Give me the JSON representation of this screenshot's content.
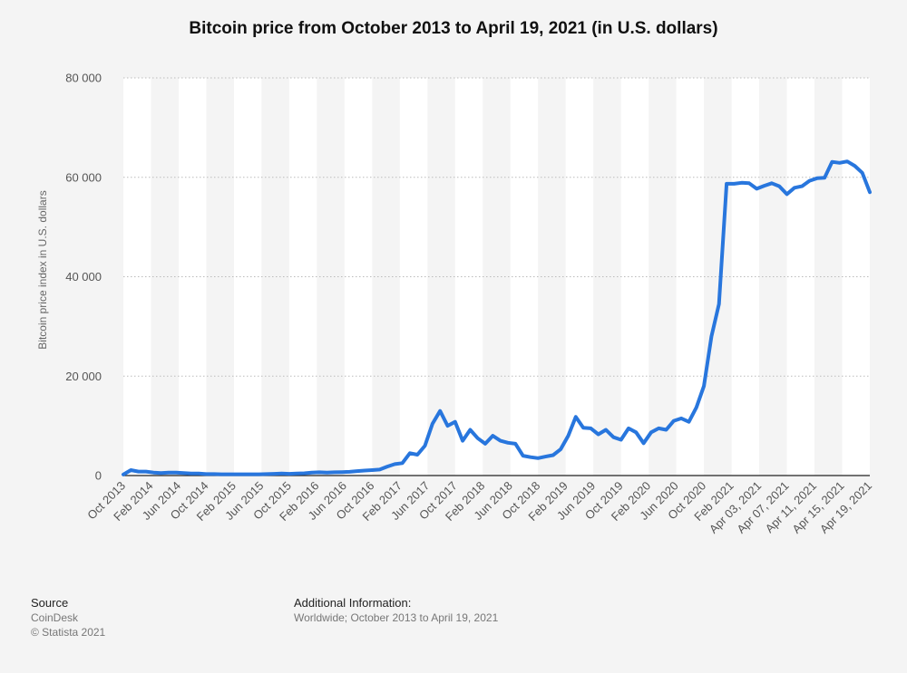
{
  "title": "Bitcoin price from October 2013 to April 19, 2021 (in U.S. dollars)",
  "source": {
    "heading": "Source",
    "name": "CoinDesk",
    "copyright": "© Statista 2021"
  },
  "additional": {
    "heading": "Additional Information:",
    "text": "Worldwide; October 2013 to April 19, 2021"
  },
  "chart_data": {
    "type": "line",
    "title": "Bitcoin price from October 2013 to April 19, 2021 (in U.S. dollars)",
    "ylabel": "Bitcoin price index in U.S. dollars",
    "xlabel": "",
    "ylim": [
      0,
      80000
    ],
    "yticks": [
      0,
      20000,
      40000,
      60000,
      80000
    ],
    "ytick_labels": [
      "0",
      "20 000",
      "40 000",
      "60 000",
      "80 000"
    ],
    "grid": true,
    "line_color": "#2876dd",
    "xtick_labels": [
      "Oct 2013",
      "Feb 2014",
      "Jun 2014",
      "Oct 2014",
      "Feb 2015",
      "Jun 2015",
      "Oct 2015",
      "Feb 2016",
      "Jun 2016",
      "Oct 2016",
      "Feb 2017",
      "Jun 2017",
      "Oct 2017",
      "Feb 2018",
      "Jun 2018",
      "Oct 2018",
      "Feb 2019",
      "Jun 2019",
      "Oct 2019",
      "Feb 2020",
      "Jun 2020",
      "Oct 2020",
      "Feb 2021",
      "Apr 03, 2021",
      "Apr 07, 2021",
      "Apr 11, 2021",
      "Apr 15, 2021",
      "Apr 19, 2021"
    ],
    "series": [
      {
        "values": [
          200,
          1100,
          800,
          800,
          600,
          500,
          600,
          600,
          500,
          400,
          400,
          300,
          300,
          250,
          250,
          250,
          250,
          250,
          250,
          300,
          350,
          400,
          350,
          400,
          450,
          600,
          650,
          600,
          650,
          700,
          750,
          900,
          1000,
          1100,
          1200,
          1800,
          2300,
          2500,
          4500,
          4200,
          6000,
          10400,
          13000,
          10000,
          10800,
          7000,
          9200,
          7500,
          6400,
          8000,
          7000,
          6600,
          6400,
          4000,
          3700,
          3500,
          3800,
          4100,
          5300,
          8000,
          11800,
          9600,
          9500,
          8300,
          9200,
          7700,
          7200,
          9500,
          8700,
          6500,
          8700,
          9500,
          9200,
          11000,
          11500,
          10800,
          13700,
          18000,
          28000,
          34500,
          58700,
          58700,
          58900,
          58800,
          57700,
          58300,
          58800,
          58200,
          56600,
          57900,
          58200,
          59300,
          59800,
          59900,
          63100,
          62900,
          63200,
          62300,
          60900,
          57000
        ]
      }
    ]
  }
}
